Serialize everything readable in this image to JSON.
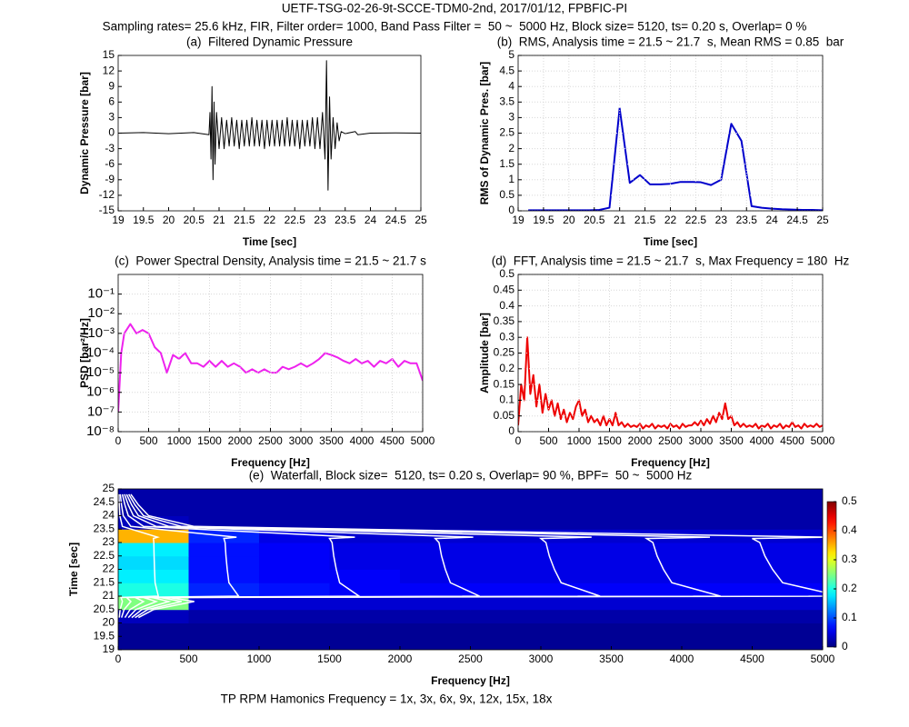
{
  "figure": {
    "title": "UETF-TSG-02-26-9t-SCCE-TDM0-2nd, 2017/01/12, FPBFIC-PI",
    "subtitle": "Sampling rates= 25.6 kHz, FIR, Filter order= 1000, Band Pass Filter =  50 ~  5000 Hz, Block size= 5120, ts= 0.20 s, Overlap= 0 %",
    "caption": "TP RPM Hamonics Frequency = 1x, 3x, 6x, 9x, 12x, 15x, 18x"
  },
  "chart_data": [
    {
      "type": "line",
      "title": "(a)  Filtered Dynamic Pressure",
      "xlabel": "Time [sec]",
      "ylabel": "Dynamic Pressure [bar]",
      "color": "#000000",
      "grid": false,
      "xlim": [
        19,
        25
      ],
      "xticks": [
        19,
        19.5,
        20,
        20.5,
        21,
        21.5,
        22,
        22.5,
        23,
        23.5,
        24,
        24.5,
        25
      ],
      "ylim": [
        -15,
        15
      ],
      "yticks": [
        -15,
        -12,
        -9,
        -6,
        -3,
        0,
        3,
        6,
        9,
        12,
        15
      ],
      "x": [
        19,
        19.5,
        20,
        20.5,
        20.8,
        20.82,
        20.84,
        20.86,
        20.88,
        20.9,
        20.92,
        20.95,
        21.0,
        21.05,
        21.1,
        21.15,
        21.2,
        21.25,
        21.3,
        21.35,
        21.4,
        21.45,
        21.5,
        21.55,
        21.6,
        21.65,
        21.7,
        21.75,
        21.8,
        21.85,
        21.9,
        21.95,
        22,
        22.05,
        22.1,
        22.15,
        22.2,
        22.25,
        22.3,
        22.35,
        22.4,
        22.45,
        22.5,
        22.55,
        22.6,
        22.65,
        22.7,
        22.75,
        22.8,
        22.85,
        22.9,
        22.95,
        23.0,
        23.05,
        23.1,
        23.13,
        23.16,
        23.19,
        23.22,
        23.26,
        23.3,
        23.34,
        23.38,
        23.42,
        23.5,
        23.7,
        23.75,
        24,
        24.5,
        25
      ],
      "values": [
        0,
        0.1,
        -0.1,
        0.1,
        -0.3,
        4,
        -5,
        9,
        -9,
        6,
        -6,
        4,
        -3,
        3,
        -3,
        2.5,
        -2.5,
        3,
        -2.5,
        2.5,
        -3,
        2.5,
        -2.5,
        2.5,
        -2.5,
        3,
        -2.5,
        2.5,
        -2.5,
        2.5,
        -3,
        2.5,
        -2.5,
        2.5,
        -2.5,
        2.5,
        -2.5,
        2.5,
        -2.5,
        3,
        -2.5,
        2.5,
        -2.5,
        2.5,
        -3,
        2.5,
        -2.5,
        2.5,
        -2.5,
        3,
        -3,
        3,
        -3,
        4,
        -5,
        14,
        -11,
        7,
        -5,
        3,
        -3,
        2,
        -1.5,
        0.3,
        -0.1,
        0.3,
        -0.3,
        0,
        0.05,
        0
      ]
    },
    {
      "type": "line",
      "title": "(b)  RMS, Analysis time = 21.5 ~ 21.7  s, Mean RMS = 0.85  bar",
      "xlabel": "Time [sec]",
      "ylabel": "RMS of Dynamic Pres. [bar]",
      "color": "#0000cc",
      "grid": true,
      "xlim": [
        19,
        25
      ],
      "xticks": [
        19,
        19.5,
        20,
        20.5,
        21,
        21.5,
        22,
        22.5,
        23,
        23.5,
        24,
        24.5,
        25
      ],
      "ylim": [
        0,
        5
      ],
      "yticks": [
        0,
        0.5,
        1,
        1.5,
        2,
        2.5,
        3,
        3.5,
        4,
        4.5,
        5
      ],
      "x": [
        19.2,
        19.4,
        19.6,
        19.8,
        20.0,
        20.2,
        20.4,
        20.6,
        20.8,
        21.0,
        21.2,
        21.4,
        21.6,
        21.8,
        22.0,
        22.2,
        22.4,
        22.6,
        22.8,
        23.0,
        23.2,
        23.4,
        23.6,
        23.8,
        24.0,
        24.2,
        24.4,
        24.6,
        24.8,
        25.0
      ],
      "values": [
        0.02,
        0.02,
        0.02,
        0.02,
        0.02,
        0.02,
        0.02,
        0.03,
        0.1,
        3.3,
        0.9,
        1.15,
        0.85,
        0.85,
        0.87,
        0.93,
        0.93,
        0.92,
        0.83,
        1.0,
        2.8,
        2.25,
        0.15,
        0.1,
        0.07,
        0.05,
        0.04,
        0.03,
        0.03,
        0.02
      ]
    },
    {
      "type": "line",
      "title": "(c)  Power Spectral Density, Analysis time = 21.5 ~ 21.7 s",
      "xlabel": "Frequency [Hz]",
      "ylabel": "PSD [bar²/Hz]",
      "color": "#ee22ee",
      "grid": true,
      "log_y": true,
      "xlim": [
        0,
        5000
      ],
      "xticks": [
        0,
        500,
        1000,
        1500,
        2000,
        2500,
        3000,
        3500,
        4000,
        4500,
        5000
      ],
      "ylim": [
        1e-08,
        1
      ],
      "yticks": [
        {
          "value": 1e-08,
          "label": "10⁻⁸"
        },
        {
          "value": 1e-07,
          "label": "10⁻⁷"
        },
        {
          "value": 1e-06,
          "label": "10⁻⁶"
        },
        {
          "value": 1e-05,
          "label": "10⁻⁵"
        },
        {
          "value": 0.0001,
          "label": "10⁻⁴"
        },
        {
          "value": 0.001,
          "label": "10⁻³"
        },
        {
          "value": 0.01,
          "label": "10⁻²"
        },
        {
          "value": 0.1,
          "label": "10⁻¹"
        }
      ],
      "x": [
        0,
        50,
        100,
        200,
        300,
        400,
        500,
        600,
        700,
        800,
        900,
        1000,
        1100,
        1200,
        1300,
        1400,
        1500,
        1600,
        1700,
        1800,
        1900,
        2000,
        2100,
        2200,
        2300,
        2400,
        2500,
        2600,
        2700,
        2800,
        2900,
        3000,
        3100,
        3200,
        3300,
        3400,
        3500,
        3600,
        3700,
        3800,
        3900,
        4000,
        4100,
        4200,
        4300,
        4400,
        4500,
        4600,
        4700,
        4800,
        4900,
        5000
      ],
      "values": [
        1e-07,
        0.0001,
        0.001,
        0.003,
        0.001,
        0.0015,
        0.001,
        0.0002,
        0.0001,
        1e-05,
        8e-05,
        5e-05,
        0.0001,
        3e-05,
        3e-05,
        2e-05,
        4e-05,
        2e-05,
        4e-05,
        2e-05,
        3e-05,
        2e-05,
        1e-05,
        1.5e-05,
        1e-05,
        1.5e-05,
        1e-05,
        1e-05,
        2e-05,
        1.5e-05,
        2e-05,
        3e-05,
        2e-05,
        3e-05,
        5e-05,
        0.0001,
        8e-05,
        6e-05,
        4e-05,
        3e-05,
        5e-05,
        3e-05,
        4e-05,
        2e-05,
        4e-05,
        3e-05,
        5e-05,
        2e-05,
        4e-05,
        3e-05,
        3e-05,
        4e-06
      ]
    },
    {
      "type": "line",
      "title": "(d)  FFT, Analysis time = 21.5 ~ 21.7  s, Max Frequency = 180  Hz",
      "xlabel": "Frequency [Hz]",
      "ylabel": "Amplitude [bar]",
      "color": "#ee0000",
      "grid": true,
      "xlim": [
        0,
        5000
      ],
      "xticks": [
        0,
        500,
        1000,
        1500,
        2000,
        2500,
        3000,
        3500,
        4000,
        4500,
        5000
      ],
      "ylim": [
        0,
        0.5
      ],
      "yticks": [
        0,
        0.05,
        0.1,
        0.15,
        0.2,
        0.25,
        0.3,
        0.35,
        0.4,
        0.45,
        0.5
      ],
      "x": [
        0,
        50,
        100,
        150,
        200,
        250,
        300,
        350,
        400,
        450,
        500,
        550,
        600,
        650,
        700,
        750,
        800,
        850,
        900,
        950,
        1000,
        1050,
        1100,
        1150,
        1200,
        1250,
        1300,
        1350,
        1400,
        1450,
        1500,
        1550,
        1600,
        1650,
        1700,
        1750,
        1800,
        1850,
        1900,
        1950,
        2000,
        2050,
        2100,
        2150,
        2200,
        2250,
        2300,
        2350,
        2400,
        2450,
        2500,
        2550,
        2600,
        2650,
        2700,
        2750,
        2800,
        2850,
        2900,
        2950,
        3000,
        3050,
        3100,
        3150,
        3200,
        3250,
        3300,
        3350,
        3400,
        3450,
        3500,
        3550,
        3600,
        3650,
        3700,
        3750,
        3800,
        3850,
        3900,
        3950,
        4000,
        4050,
        4100,
        4150,
        4200,
        4250,
        4300,
        4350,
        4400,
        4450,
        4500,
        4550,
        4600,
        4650,
        4700,
        4750,
        4800,
        4850,
        4900,
        4950,
        5000
      ],
      "values": [
        0.02,
        0.15,
        0.1,
        0.3,
        0.12,
        0.18,
        0.08,
        0.15,
        0.06,
        0.12,
        0.07,
        0.1,
        0.05,
        0.09,
        0.04,
        0.07,
        0.03,
        0.06,
        0.04,
        0.08,
        0.1,
        0.05,
        0.07,
        0.03,
        0.05,
        0.03,
        0.04,
        0.02,
        0.05,
        0.02,
        0.04,
        0.02,
        0.06,
        0.02,
        0.03,
        0.015,
        0.025,
        0.015,
        0.02,
        0.015,
        0.025,
        0.01,
        0.02,
        0.015,
        0.025,
        0.01,
        0.02,
        0.015,
        0.02,
        0.01,
        0.025,
        0.015,
        0.02,
        0.01,
        0.025,
        0.015,
        0.02,
        0.02,
        0.03,
        0.02,
        0.035,
        0.02,
        0.04,
        0.025,
        0.05,
        0.03,
        0.06,
        0.04,
        0.09,
        0.04,
        0.05,
        0.02,
        0.03,
        0.015,
        0.025,
        0.015,
        0.02,
        0.015,
        0.025,
        0.01,
        0.02,
        0.015,
        0.025,
        0.01,
        0.02,
        0.015,
        0.025,
        0.01,
        0.02,
        0.015,
        0.03,
        0.015,
        0.02,
        0.01,
        0.025,
        0.015,
        0.02,
        0.015,
        0.025,
        0.015,
        0.02
      ]
    },
    {
      "type": "heatmap",
      "title": "(e)  Waterfall, Block size=  5120, ts= 0.20 s, Overlap= 90 %, BPF=  50 ~  5000 Hz",
      "xlabel": "Frequency [Hz]",
      "ylabel": "Time [sec]",
      "colormap": "jet",
      "line_color": "#ffffff",
      "xlim": [
        0,
        5000
      ],
      "xticks": [
        0,
        500,
        1000,
        1500,
        2000,
        2500,
        3000,
        3500,
        4000,
        4500,
        5000
      ],
      "ylim": [
        19,
        25
      ],
      "yticks": [
        19,
        19.5,
        20,
        20.5,
        21,
        21.5,
        22,
        22.5,
        23,
        23.5,
        24,
        24.5,
        25
      ],
      "zlim": [
        0,
        0.5
      ],
      "zticks": [
        0,
        0.1,
        0.2,
        0.3,
        0.4,
        0.5
      ],
      "xbins": [
        0,
        500,
        1000,
        1500,
        2000,
        2500,
        3000,
        3500,
        4000,
        4500,
        5000
      ],
      "ybins": [
        19,
        19.5,
        20,
        20.5,
        21,
        21.5,
        22,
        22.5,
        23,
        23.5,
        24,
        24.5,
        25
      ],
      "z": [
        [
          0.01,
          0.01,
          0.01,
          0.01,
          0.01,
          0.01,
          0.01,
          0.01,
          0.01,
          0.01
        ],
        [
          0.01,
          0.01,
          0.01,
          0.01,
          0.01,
          0.01,
          0.01,
          0.01,
          0.01,
          0.01
        ],
        [
          0.03,
          0.02,
          0.02,
          0.02,
          0.02,
          0.02,
          0.02,
          0.02,
          0.02,
          0.02
        ],
        [
          0.25,
          0.04,
          0.04,
          0.04,
          0.04,
          0.04,
          0.04,
          0.04,
          0.04,
          0.04
        ],
        [
          0.2,
          0.08,
          0.07,
          0.06,
          0.06,
          0.06,
          0.06,
          0.06,
          0.06,
          0.06
        ],
        [
          0.18,
          0.07,
          0.06,
          0.06,
          0.05,
          0.05,
          0.05,
          0.05,
          0.05,
          0.05
        ],
        [
          0.17,
          0.07,
          0.06,
          0.05,
          0.05,
          0.05,
          0.05,
          0.05,
          0.05,
          0.05
        ],
        [
          0.18,
          0.07,
          0.06,
          0.05,
          0.05,
          0.05,
          0.05,
          0.05,
          0.05,
          0.05
        ],
        [
          0.35,
          0.08,
          0.05,
          0.04,
          0.04,
          0.04,
          0.04,
          0.04,
          0.04,
          0.04
        ],
        [
          0.03,
          0.02,
          0.02,
          0.02,
          0.02,
          0.02,
          0.02,
          0.02,
          0.02,
          0.02
        ],
        [
          0.02,
          0.02,
          0.02,
          0.02,
          0.02,
          0.02,
          0.02,
          0.02,
          0.02,
          0.02
        ],
        [
          0.02,
          0.02,
          0.02,
          0.02,
          0.02,
          0.02,
          0.02,
          0.02,
          0.02,
          0.02
        ]
      ],
      "line_times": [
        20.2,
        20.5,
        20.8,
        20.95,
        21.0,
        21.5,
        22.0,
        22.5,
        23.0,
        23.15,
        23.2,
        23.6,
        24.0,
        24.4,
        24.8
      ],
      "lines": [
        [
          8,
          14,
          30,
          20,
          285,
          262,
          258,
          255,
          253,
          250,
          280,
          30,
          12,
          8,
          5
        ],
        [
          24,
          42,
          90,
          60,
          855,
          786,
          774,
          765,
          759,
          750,
          840,
          90,
          36,
          24,
          15
        ],
        [
          48,
          84,
          180,
          120,
          1710,
          1572,
          1548,
          1530,
          1518,
          1500,
          1680,
          180,
          72,
          48,
          30
        ],
        [
          72,
          126,
          270,
          180,
          2565,
          2358,
          2322,
          2295,
          2277,
          2250,
          2520,
          270,
          108,
          72,
          45
        ],
        [
          96,
          168,
          360,
          240,
          3420,
          3144,
          3096,
          3060,
          3036,
          3000,
          3360,
          360,
          144,
          96,
          60
        ],
        [
          120,
          210,
          450,
          300,
          4275,
          3930,
          3870,
          3825,
          3795,
          3750,
          4200,
          450,
          180,
          120,
          75
        ],
        [
          144,
          252,
          540,
          360,
          5130,
          4716,
          4644,
          4590,
          4554,
          4500,
          5040,
          540,
          216,
          144,
          90
        ]
      ]
    }
  ]
}
